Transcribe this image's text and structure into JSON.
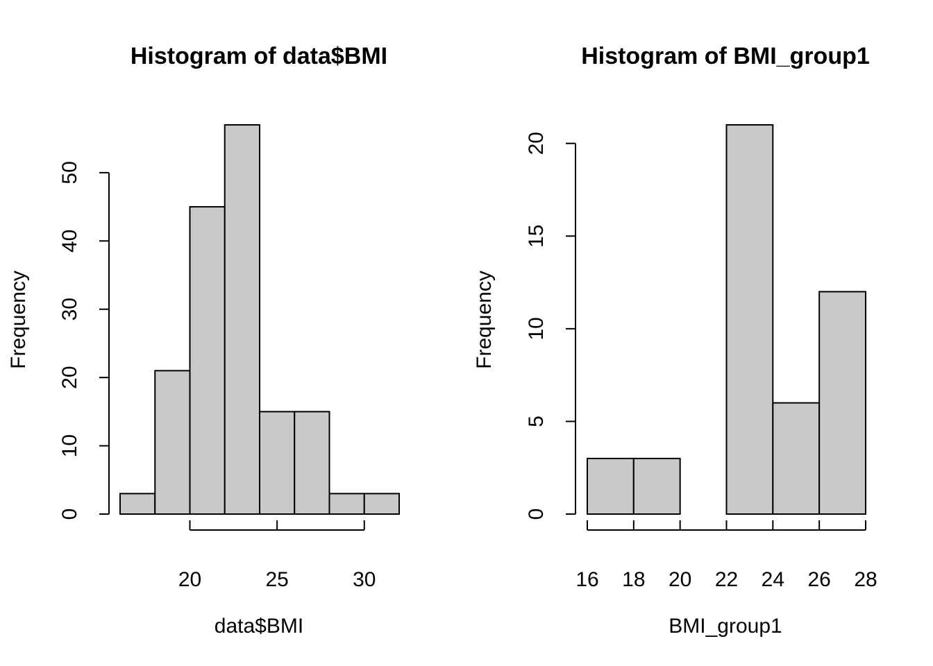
{
  "chart_data": [
    {
      "type": "bar",
      "title": "Histogram of data$BMI",
      "xlabel": "data$BMI",
      "ylabel": "Frequency",
      "bin_edges": [
        16,
        18,
        20,
        22,
        24,
        26,
        28,
        30,
        32
      ],
      "values": [
        3,
        21,
        45,
        57,
        15,
        15,
        3,
        3
      ],
      "xlim": [
        16,
        32
      ],
      "ylim": [
        0,
        57
      ],
      "x_ticks": [
        20,
        25,
        30
      ],
      "y_ticks": [
        0,
        10,
        20,
        30,
        40,
        50
      ],
      "grid": false
    },
    {
      "type": "bar",
      "title": "Histogram of BMI_group1",
      "xlabel": "BMI_group1",
      "ylabel": "Frequency",
      "bin_edges": [
        16,
        18,
        20,
        22,
        24,
        26,
        28
      ],
      "values": [
        3,
        3,
        0,
        21,
        6,
        12
      ],
      "xlim": [
        16,
        28
      ],
      "ylim": [
        0,
        21
      ],
      "x_ticks": [
        16,
        18,
        20,
        22,
        24,
        26,
        28
      ],
      "y_ticks": [
        0,
        5,
        10,
        15,
        20
      ],
      "grid": false
    }
  ]
}
